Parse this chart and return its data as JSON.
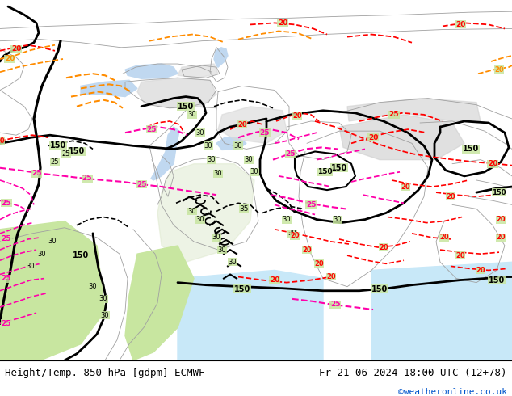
{
  "title_left": "Height/Temp. 850 hPa [gdpm] ECMWF",
  "title_right": "Fr 21-06-2024 18:00 UTC (12+78)",
  "copyright": "©weatheronline.co.uk",
  "bg_color": "#c8e6a0",
  "land_color": "#c8e6a0",
  "mountain_color": "#d8d8d8",
  "water_color": "#aaccee",
  "footer_bg": "#ffffff",
  "text_color_black": "#000000",
  "text_color_blue": "#0055cc",
  "fig_width": 6.34,
  "fig_height": 4.9,
  "dpi": 100,
  "black_lw": 2.0,
  "thin_lw": 1.2,
  "red_lw": 1.3,
  "orange_lw": 1.3,
  "pink_lw": 1.5
}
